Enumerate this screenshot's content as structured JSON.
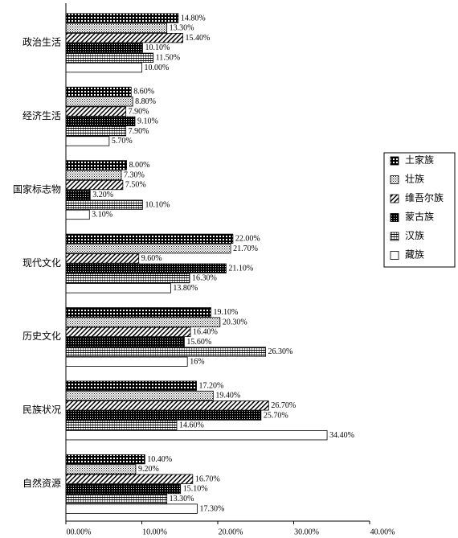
{
  "chart_data": {
    "type": "bar",
    "orientation": "horizontal",
    "categories": [
      "政治生活",
      "经济生活",
      "国家标志物",
      "现代文化",
      "历史文化",
      "民族状况",
      "自然资源"
    ],
    "series": [
      {
        "name": "土家族",
        "values": [
          14.8,
          8.6,
          8.0,
          22.0,
          19.1,
          17.2,
          10.4
        ],
        "value_labels": [
          "14.80%",
          "8.60%",
          "8.00%",
          "22.00%",
          "19.10%",
          "17.20%",
          "10.40%"
        ]
      },
      {
        "name": "壮族",
        "values": [
          13.3,
          8.8,
          7.3,
          21.7,
          20.3,
          19.4,
          9.2
        ],
        "value_labels": [
          "13.30%",
          "8.80%",
          "7.30%",
          "21.70%",
          "20.30%",
          "19.40%",
          "9.20%"
        ]
      },
      {
        "name": "维吾尔族",
        "values": [
          15.4,
          7.9,
          7.5,
          9.6,
          16.4,
          26.7,
          16.7
        ],
        "value_labels": [
          "15.40%",
          "7.90%",
          "7.50%",
          "9.60%",
          "16.40%",
          "26.70%",
          "16.70%"
        ]
      },
      {
        "name": "蒙古族",
        "values": [
          10.1,
          9.1,
          3.2,
          21.1,
          15.6,
          25.7,
          15.1
        ],
        "value_labels": [
          "10.10%",
          "9.10%",
          "3.20%",
          "21.10%",
          "15.60%",
          "25.70%",
          "15.10%"
        ]
      },
      {
        "name": "汉族",
        "values": [
          11.5,
          7.9,
          10.1,
          16.3,
          26.3,
          14.6,
          13.3
        ],
        "value_labels": [
          "11.50%",
          "7.90%",
          "10.10%",
          "16.30%",
          "26.30%",
          "14.60%",
          "13.30%"
        ]
      },
      {
        "name": "藏族",
        "values": [
          10.0,
          5.7,
          3.1,
          13.8,
          16,
          34.4,
          17.3
        ],
        "value_labels": [
          "10.00%",
          "5.70%",
          "3.10%",
          "13.80%",
          "16%",
          "34.40%",
          "17.30%"
        ]
      }
    ],
    "xlim": [
      0,
      40
    ],
    "xticks": [
      {
        "value": 0,
        "label": "00.00%"
      },
      {
        "value": 10,
        "label": "10.00%"
      },
      {
        "value": 20,
        "label": "20.00%"
      },
      {
        "value": 30,
        "label": "30.00%"
      },
      {
        "value": 40,
        "label": "40.00%"
      }
    ]
  }
}
